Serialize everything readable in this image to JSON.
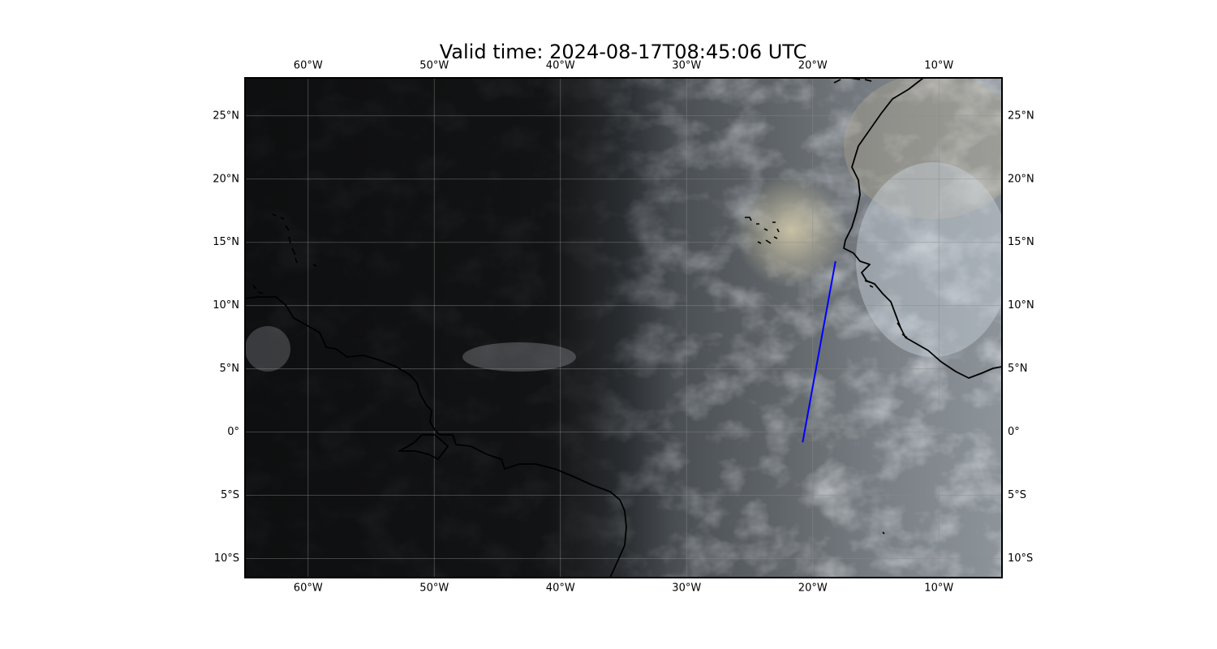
{
  "figure": {
    "title": "Valid time: 2024-08-17T08:45:06 UTC"
  },
  "map": {
    "extent": {
      "lon_min": -65,
      "lon_max": -5,
      "lat_min": -11.5,
      "lat_max": 28
    },
    "gridlines": true,
    "lon_ticks": [
      {
        "value": -60,
        "label": "60°W"
      },
      {
        "value": -50,
        "label": "50°W"
      },
      {
        "value": -40,
        "label": "40°W"
      },
      {
        "value": -30,
        "label": "30°W"
      },
      {
        "value": -20,
        "label": "20°W"
      },
      {
        "value": -10,
        "label": "10°W"
      }
    ],
    "lat_ticks": [
      {
        "value": 25,
        "label": "25°N"
      },
      {
        "value": 20,
        "label": "20°N"
      },
      {
        "value": 15,
        "label": "15°N"
      },
      {
        "value": 10,
        "label": "10°N"
      },
      {
        "value": 5,
        "label": "5°N"
      },
      {
        "value": 0,
        "label": "0°"
      },
      {
        "value": -5,
        "label": "5°S"
      },
      {
        "value": -10,
        "label": "10°S"
      }
    ],
    "track_line": {
      "color": "#0000ff",
      "start": {
        "lon": -18.2,
        "lat": 13.5
      },
      "end": {
        "lon": -20.8,
        "lat": -0.8
      }
    },
    "colors": {
      "night": "#0f1011",
      "day_gray": "#6f7376",
      "day_bright": "#b8c0c8",
      "coast": "#000000",
      "grid": "#8a8a8a"
    }
  }
}
